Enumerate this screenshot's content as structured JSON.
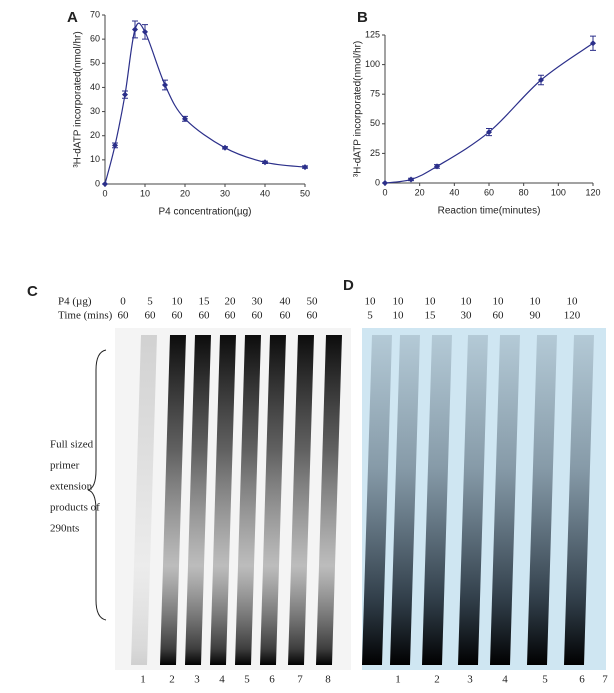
{
  "chart_data": [
    {
      "type": "line",
      "panel": "A",
      "x_label": "P4 concentration(µg)",
      "y_label": "³H-dATP incorporated(nmol/hr)",
      "x": [
        0,
        2.5,
        5,
        7.5,
        10,
        15,
        20,
        30,
        40,
        50
      ],
      "series": [
        {
          "color": "#2b2f8a",
          "values": [
            0,
            16,
            37,
            64,
            63,
            41,
            27,
            15,
            9,
            7
          ],
          "errors": [
            0,
            1,
            1.5,
            3.5,
            3,
            2,
            1,
            0.5,
            0.5,
            0.5
          ]
        }
      ],
      "xlim": [
        0,
        50
      ],
      "xticks": [
        0,
        10,
        20,
        30,
        40,
        50
      ],
      "ylim": [
        0,
        70
      ],
      "yticks": [
        0,
        10,
        20,
        30,
        40,
        50,
        60,
        70
      ]
    },
    {
      "type": "line",
      "panel": "B",
      "x_label": "Reaction time(minutes)",
      "y_label": "³H-dATP incorporated(nmol/hr)",
      "x": [
        0,
        15,
        30,
        60,
        90,
        120
      ],
      "series": [
        {
          "color": "#2b2f8a",
          "values": [
            0,
            3,
            14,
            43,
            87,
            118
          ],
          "errors": [
            0,
            1,
            1.5,
            3,
            4,
            6
          ]
        }
      ],
      "xlim": [
        0,
        120
      ],
      "xticks": [
        0,
        20,
        40,
        60,
        80,
        100,
        120
      ],
      "ylim": [
        0,
        125
      ],
      "yticks": [
        0,
        25,
        50,
        75,
        100,
        125
      ]
    }
  ],
  "gels": [
    {
      "panel": "C",
      "row_labels": [
        "P4 (µg)",
        "Time (mins)"
      ],
      "p4": [
        "0",
        "5",
        "10",
        "15",
        "20",
        "30",
        "40",
        "50"
      ],
      "time": [
        "60",
        "60",
        "60",
        "60",
        "60",
        "60",
        "60",
        "60"
      ],
      "lanes": [
        "1",
        "2",
        "3",
        "4",
        "5",
        "6",
        "7",
        "8"
      ],
      "side_label": [
        "Full sized",
        "primer",
        "extension",
        "products of",
        "290nts"
      ]
    },
    {
      "panel": "D",
      "p4": [
        "10",
        "10",
        "10",
        "10",
        "10",
        "10",
        "10"
      ],
      "time": [
        "5",
        "10",
        "15",
        "30",
        "60",
        "90",
        "120"
      ],
      "lanes": [
        "1",
        "2",
        "3",
        "4",
        "5",
        "6",
        "7"
      ]
    }
  ]
}
